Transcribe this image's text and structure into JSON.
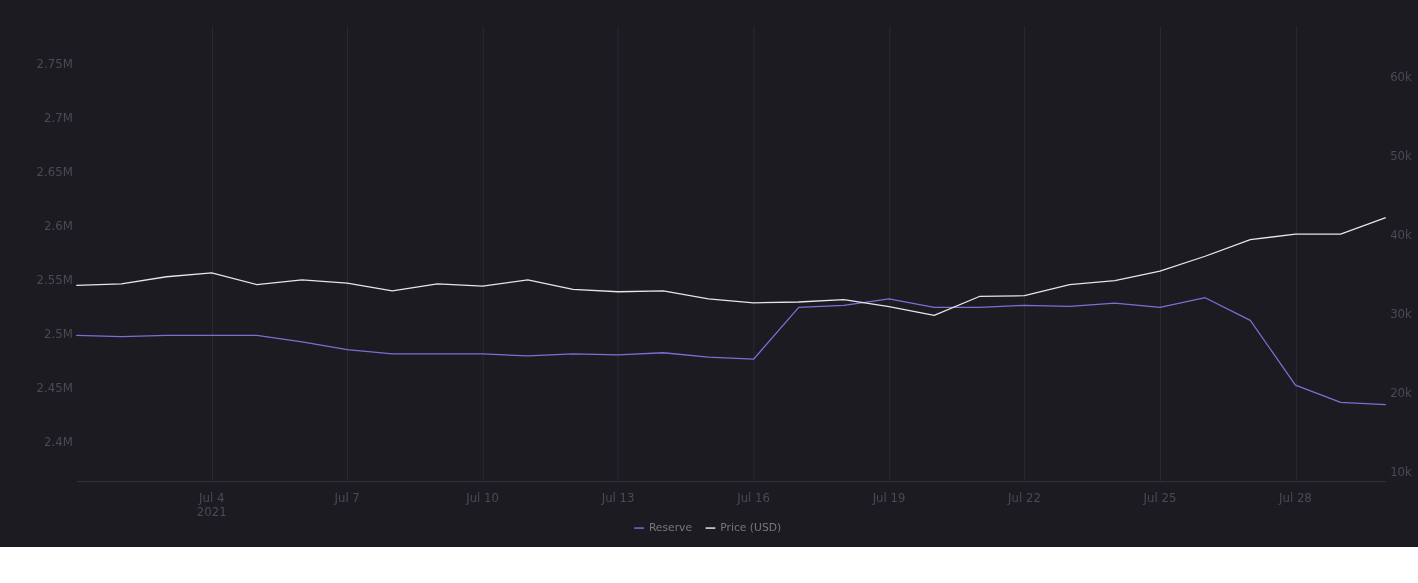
{
  "chart_data": {
    "type": "line",
    "x": [
      "2021-07-01",
      "2021-07-02",
      "2021-07-03",
      "2021-07-04",
      "2021-07-05",
      "2021-07-06",
      "2021-07-07",
      "2021-07-08",
      "2021-07-09",
      "2021-07-10",
      "2021-07-11",
      "2021-07-12",
      "2021-07-13",
      "2021-07-14",
      "2021-07-15",
      "2021-07-16",
      "2021-07-17",
      "2021-07-18",
      "2021-07-19",
      "2021-07-20",
      "2021-07-21",
      "2021-07-22",
      "2021-07-23",
      "2021-07-24",
      "2021-07-25",
      "2021-07-26",
      "2021-07-27",
      "2021-07-28",
      "2021-07-29",
      "2021-07-30"
    ],
    "series": [
      {
        "name": "Reserve",
        "color": "#7b6fd6",
        "values": [
          2498000,
          2497000,
          2498000,
          2498000,
          2498000,
          2492000,
          2485000,
          2481000,
          2481000,
          2481000,
          2479000,
          2481000,
          2480000,
          2482000,
          2478000,
          2476000,
          2524000,
          2526000,
          2532000,
          2524000,
          2524000,
          2526000,
          2525000,
          2528000,
          2524000,
          2533000,
          2512000,
          2452000,
          2436000,
          2434000
        ]
      },
      {
        "name": "Price (USD)",
        "color": "#e6e6e6",
        "axis": "y2",
        "values": [
          33600,
          33800,
          34700,
          35200,
          33700,
          34300,
          33900,
          32900,
          33800,
          33500,
          34300,
          33100,
          32800,
          32900,
          31900,
          31400,
          31500,
          31800,
          30900,
          29800,
          32200,
          32300,
          33700,
          34200,
          35400,
          37300,
          39400,
          40100,
          40100,
          42200
        ]
      }
    ],
    "xlim": [
      "2021-07-01",
      "2021-07-30"
    ],
    "xticks": [
      {
        "value": "2021-07-04",
        "label": "Jul 4\n2021"
      },
      {
        "value": "2021-07-07",
        "label": "Jul 7"
      },
      {
        "value": "2021-07-10",
        "label": "Jul 10"
      },
      {
        "value": "2021-07-13",
        "label": "Jul 13"
      },
      {
        "value": "2021-07-16",
        "label": "Jul 16"
      },
      {
        "value": "2021-07-19",
        "label": "Jul 19"
      },
      {
        "value": "2021-07-22",
        "label": "Jul 22"
      },
      {
        "value": "2021-07-25",
        "label": "Jul 25"
      },
      {
        "value": "2021-07-28",
        "label": "Jul 28"
      }
    ],
    "ylim": [
      2363000,
      2785000
    ],
    "yticks": [
      {
        "value": 2400000,
        "label": "2.4M"
      },
      {
        "value": 2450000,
        "label": "2.45M"
      },
      {
        "value": 2500000,
        "label": "2.5M"
      },
      {
        "value": 2550000,
        "label": "2.55M"
      },
      {
        "value": 2600000,
        "label": "2.6M"
      },
      {
        "value": 2650000,
        "label": "2.65M"
      },
      {
        "value": 2700000,
        "label": "2.7M"
      },
      {
        "value": 2750000,
        "label": "2.75M"
      }
    ],
    "y2lim": [
      8800,
      66500
    ],
    "y2ticks": [
      {
        "value": 10000,
        "label": "10k"
      },
      {
        "value": 20000,
        "label": "20k"
      },
      {
        "value": 30000,
        "label": "30k"
      },
      {
        "value": 40000,
        "label": "40k"
      },
      {
        "value": 50000,
        "label": "50k"
      },
      {
        "value": 60000,
        "label": "60k"
      }
    ],
    "grid": "x",
    "legend": "bottom",
    "marker": "none",
    "line_style": "solid"
  }
}
